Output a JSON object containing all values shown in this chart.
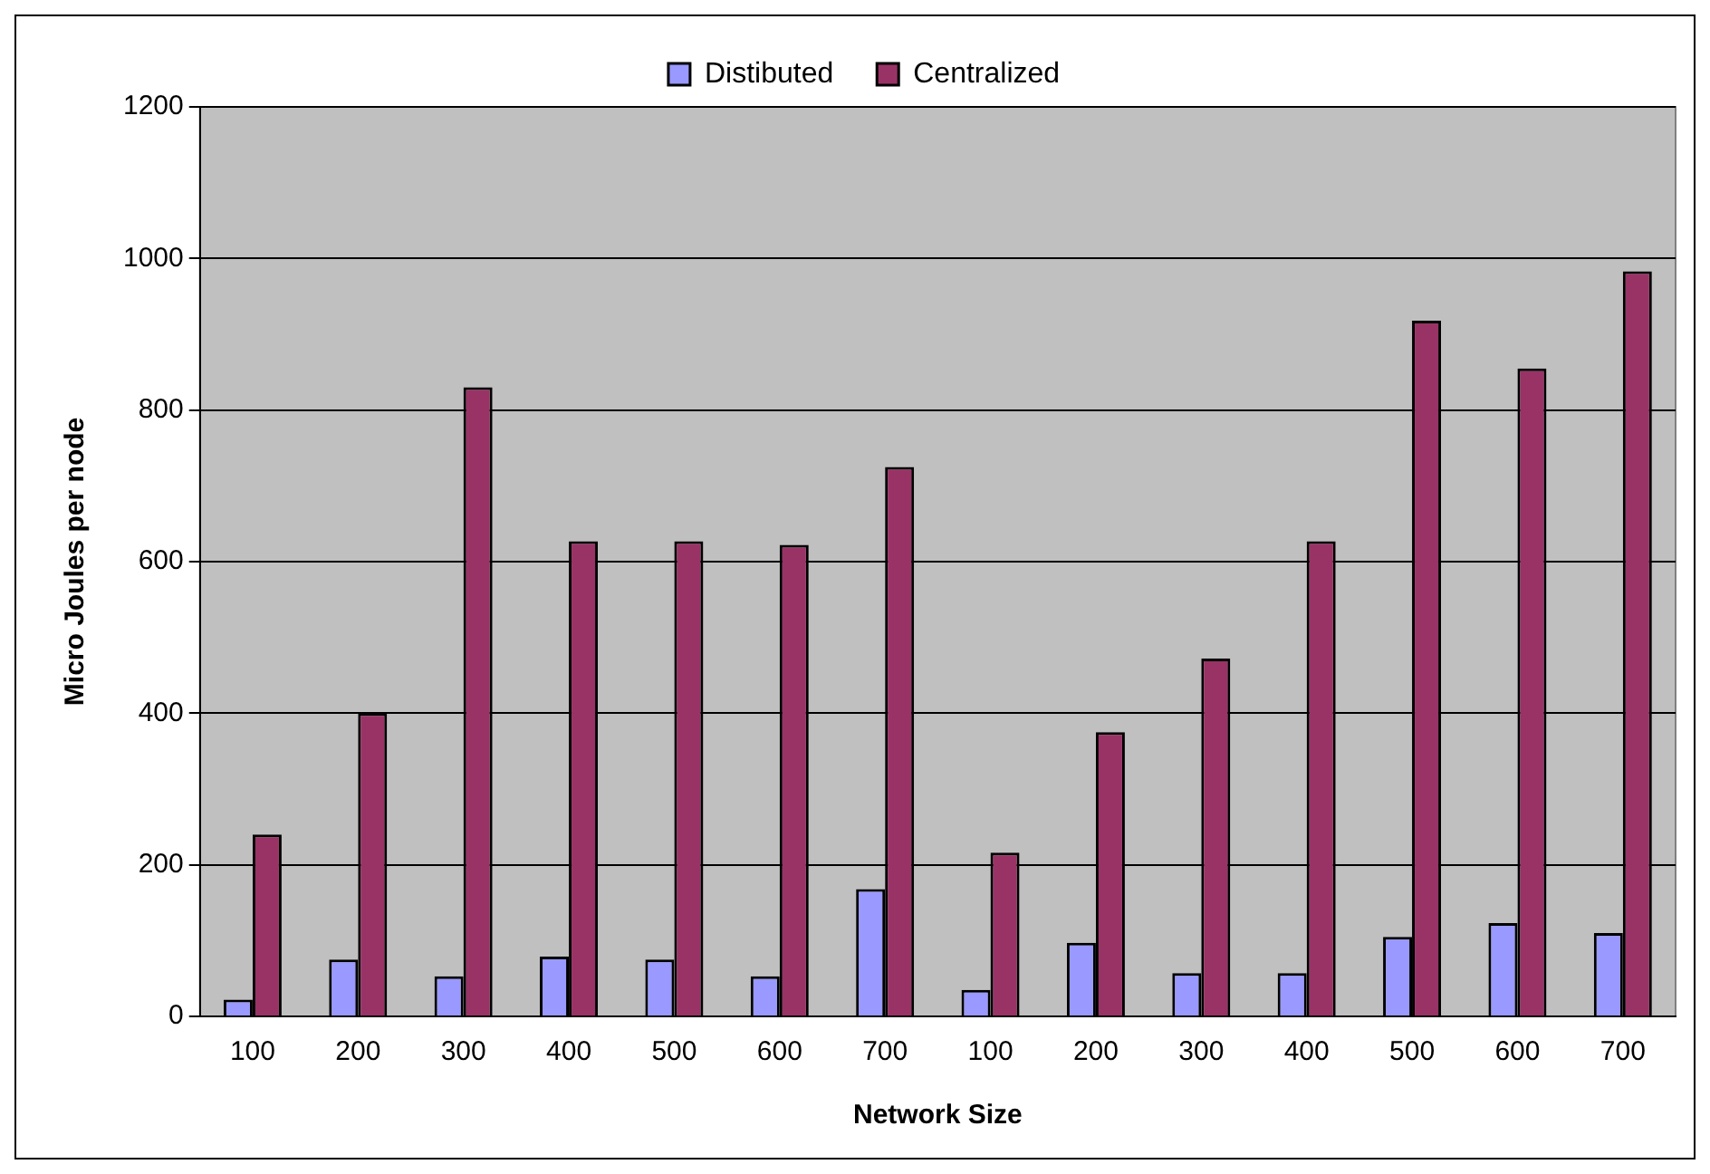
{
  "chart_data": {
    "type": "bar",
    "xlabel": "Network Size",
    "ylabel": "Micro Joules per node",
    "categories": [
      "100",
      "200",
      "300",
      "400",
      "500",
      "600",
      "700",
      "100",
      "200",
      "300",
      "400",
      "500",
      "600",
      "700"
    ],
    "series": [
      {
        "name": "Distibuted",
        "color": "#9999ff",
        "values": [
          22,
          75,
          53,
          79,
          75,
          53,
          168,
          35,
          97,
          57,
          57,
          105,
          123,
          110
        ]
      },
      {
        "name": "Centralized",
        "color": "#993366",
        "values": [
          240,
          400,
          830,
          627,
          627,
          622,
          725,
          216,
          375,
          472,
          627,
          918,
          855,
          983
        ]
      }
    ],
    "ylim": [
      0,
      1200
    ],
    "yticks": [
      0,
      200,
      400,
      600,
      800,
      1000,
      1200
    ],
    "grid": "y",
    "legend": "top"
  }
}
